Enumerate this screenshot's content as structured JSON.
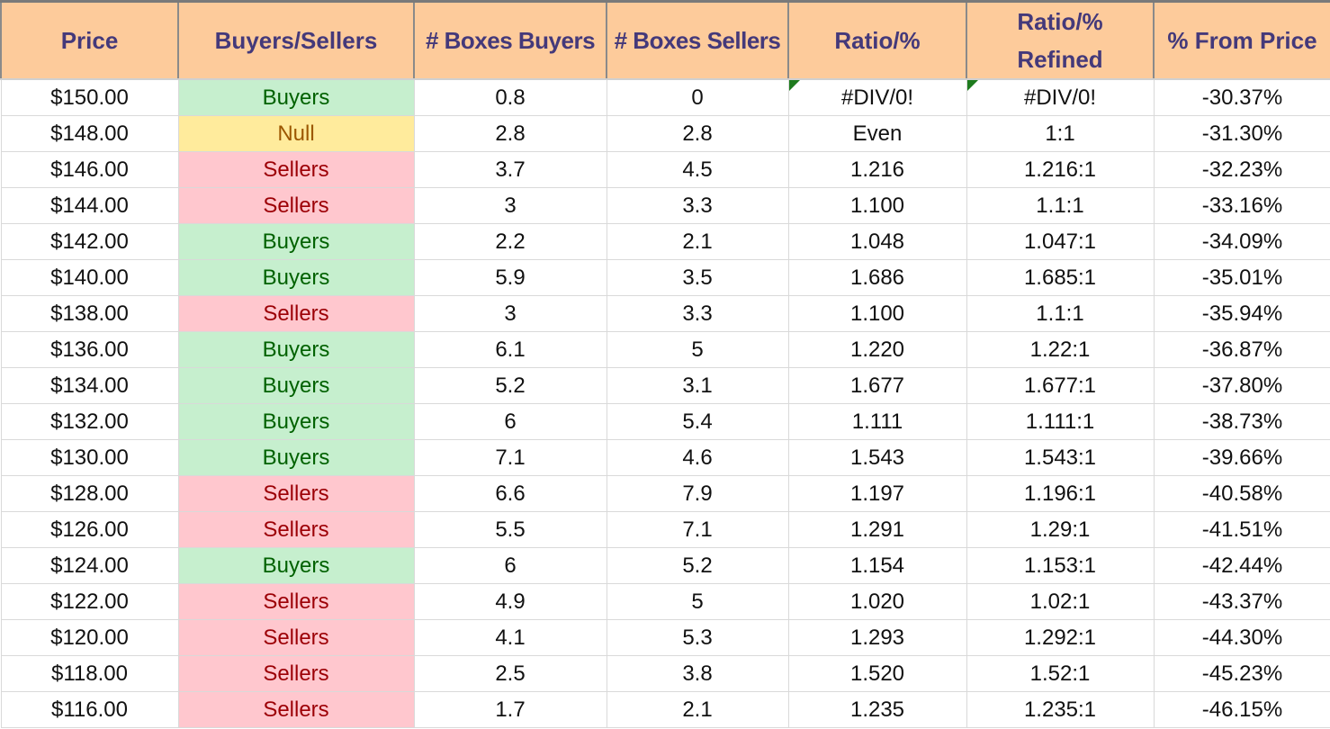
{
  "headers": {
    "price": "Price",
    "side": "Buyers/Sellers",
    "boxes_buyers": "# Boxes Buyers",
    "boxes_sellers": "# Boxes Sellers",
    "ratio": "Ratio/%",
    "ratio_refined_line1": "Ratio/%",
    "ratio_refined_line2": "Refined",
    "from_price": "% From Price"
  },
  "colors": {
    "header_bg": "#fdcb9b",
    "header_text": "#44397a",
    "buyers_bg": "#c6efce",
    "buyers_text": "#006100",
    "sellers_bg": "#ffc7ce",
    "sellers_text": "#9c0006",
    "null_bg": "#ffeb9c",
    "null_text": "#9c5700",
    "error_indicator": "#1e7b1e"
  },
  "rows": [
    {
      "price": "$150.00",
      "side": "Buyers",
      "buyers": "0.8",
      "sellers": "0",
      "ratio": "#DIV/0!",
      "refined": "#DIV/0!",
      "pct": "-30.37%"
    },
    {
      "price": "$148.00",
      "side": "Null",
      "buyers": "2.8",
      "sellers": "2.8",
      "ratio": "Even",
      "refined": "1:1",
      "pct": "-31.30%"
    },
    {
      "price": "$146.00",
      "side": "Sellers",
      "buyers": "3.7",
      "sellers": "4.5",
      "ratio": "1.216",
      "refined": "1.216:1",
      "pct": "-32.23%"
    },
    {
      "price": "$144.00",
      "side": "Sellers",
      "buyers": "3",
      "sellers": "3.3",
      "ratio": "1.100",
      "refined": "1.1:1",
      "pct": "-33.16%"
    },
    {
      "price": "$142.00",
      "side": "Buyers",
      "buyers": "2.2",
      "sellers": "2.1",
      "ratio": "1.048",
      "refined": "1.047:1",
      "pct": "-34.09%"
    },
    {
      "price": "$140.00",
      "side": "Buyers",
      "buyers": "5.9",
      "sellers": "3.5",
      "ratio": "1.686",
      "refined": "1.685:1",
      "pct": "-35.01%"
    },
    {
      "price": "$138.00",
      "side": "Sellers",
      "buyers": "3",
      "sellers": "3.3",
      "ratio": "1.100",
      "refined": "1.1:1",
      "pct": "-35.94%"
    },
    {
      "price": "$136.00",
      "side": "Buyers",
      "buyers": "6.1",
      "sellers": "5",
      "ratio": "1.220",
      "refined": "1.22:1",
      "pct": "-36.87%"
    },
    {
      "price": "$134.00",
      "side": "Buyers",
      "buyers": "5.2",
      "sellers": "3.1",
      "ratio": "1.677",
      "refined": "1.677:1",
      "pct": "-37.80%"
    },
    {
      "price": "$132.00",
      "side": "Buyers",
      "buyers": "6",
      "sellers": "5.4",
      "ratio": "1.111",
      "refined": "1.111:1",
      "pct": "-38.73%"
    },
    {
      "price": "$130.00",
      "side": "Buyers",
      "buyers": "7.1",
      "sellers": "4.6",
      "ratio": "1.543",
      "refined": "1.543:1",
      "pct": "-39.66%"
    },
    {
      "price": "$128.00",
      "side": "Sellers",
      "buyers": "6.6",
      "sellers": "7.9",
      "ratio": "1.197",
      "refined": "1.196:1",
      "pct": "-40.58%"
    },
    {
      "price": "$126.00",
      "side": "Sellers",
      "buyers": "5.5",
      "sellers": "7.1",
      "ratio": "1.291",
      "refined": "1.29:1",
      "pct": "-41.51%"
    },
    {
      "price": "$124.00",
      "side": "Buyers",
      "buyers": "6",
      "sellers": "5.2",
      "ratio": "1.154",
      "refined": "1.153:1",
      "pct": "-42.44%"
    },
    {
      "price": "$122.00",
      "side": "Sellers",
      "buyers": "4.9",
      "sellers": "5",
      "ratio": "1.020",
      "refined": "1.02:1",
      "pct": "-43.37%"
    },
    {
      "price": "$120.00",
      "side": "Sellers",
      "buyers": "4.1",
      "sellers": "5.3",
      "ratio": "1.293",
      "refined": "1.292:1",
      "pct": "-44.30%"
    },
    {
      "price": "$118.00",
      "side": "Sellers",
      "buyers": "2.5",
      "sellers": "3.8",
      "ratio": "1.520",
      "refined": "1.52:1",
      "pct": "-45.23%"
    },
    {
      "price": "$116.00",
      "side": "Sellers",
      "buyers": "1.7",
      "sellers": "2.1",
      "ratio": "1.235",
      "refined": "1.235:1",
      "pct": "-46.15%"
    }
  ]
}
